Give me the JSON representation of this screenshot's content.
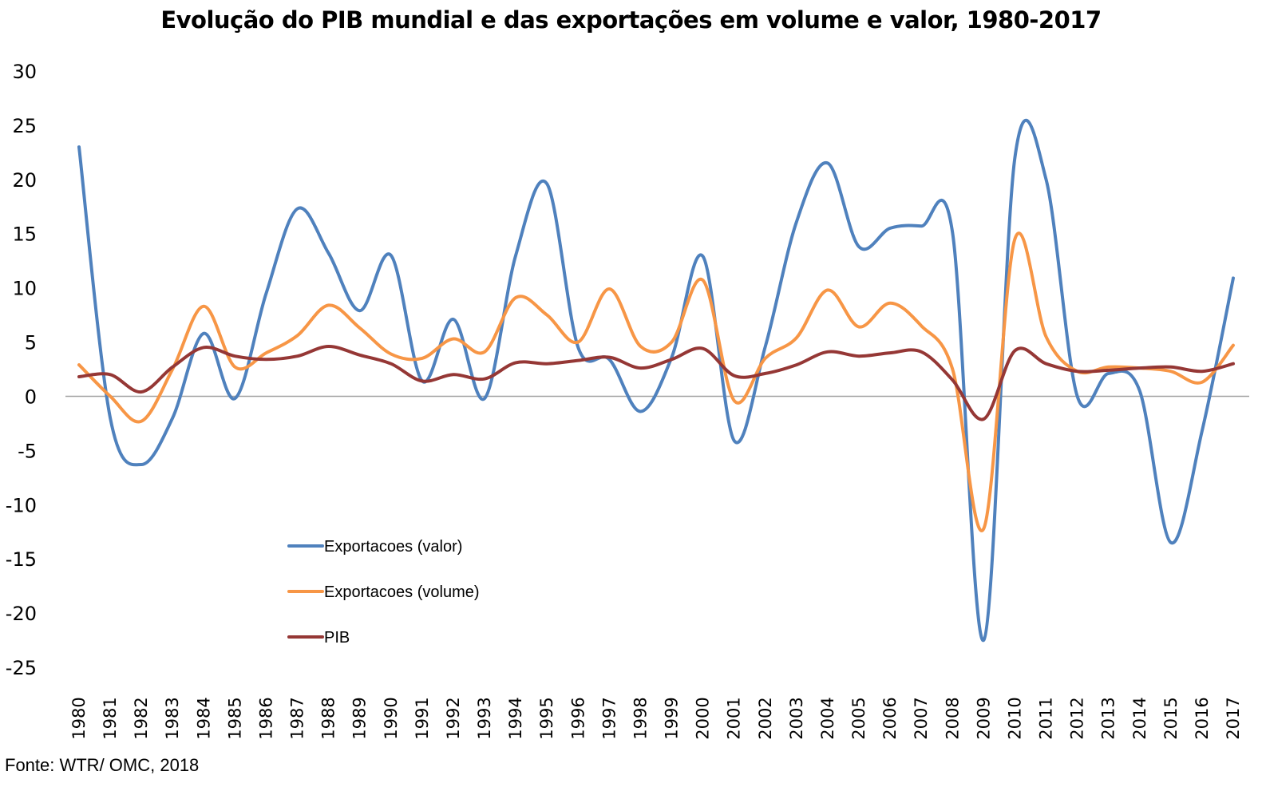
{
  "chart_data": {
    "type": "line",
    "title": "Evolução do PIB mundial e das exportações em volume e valor, 1980-2017",
    "xlabel": "",
    "ylabel": "",
    "ylim": [
      -25,
      30
    ],
    "yticks": [
      30,
      25,
      20,
      15,
      10,
      5,
      0,
      -5,
      -10,
      -15,
      -20,
      -25
    ],
    "grid": false,
    "smooth": true,
    "legend_position": "lower-left inside plot",
    "x": [
      1980,
      1981,
      1982,
      1983,
      1984,
      1985,
      1986,
      1987,
      1988,
      1989,
      1990,
      1991,
      1992,
      1993,
      1994,
      1995,
      1996,
      1997,
      1998,
      1999,
      2000,
      2001,
      2002,
      2003,
      2004,
      2005,
      2006,
      2007,
      2008,
      2009,
      2010,
      2011,
      2012,
      2013,
      2014,
      2015,
      2016,
      2017
    ],
    "series": [
      {
        "name": "Exportacoes (valor)",
        "color": "#4f81bd",
        "values": [
          23,
          -2,
          -6.3,
          -2,
          5.8,
          -0.2,
          9.5,
          17.3,
          13.2,
          7.9,
          13,
          1.4,
          7.1,
          -0.2,
          13,
          19.6,
          4.5,
          3.4,
          -1.4,
          3.6,
          12.9,
          -4.1,
          4.6,
          16.1,
          21.5,
          13.8,
          15.5,
          15.7,
          15.1,
          -22.5,
          22,
          20,
          0,
          2.1,
          0.5,
          -13.5,
          -3.2,
          10.9
        ]
      },
      {
        "name": "Exportacoes (volume)",
        "color": "#f79646",
        "values": [
          2.9,
          0,
          -2.3,
          2.5,
          8.3,
          2.7,
          4,
          5.6,
          8.4,
          6.3,
          3.9,
          3.5,
          5.3,
          4.1,
          9.1,
          7.5,
          5,
          9.9,
          4.6,
          5,
          10.7,
          -0.4,
          3.5,
          5.4,
          9.8,
          6.4,
          8.6,
          6.5,
          2.5,
          -12.2,
          14.5,
          5.5,
          2.3,
          2.7,
          2.6,
          2.3,
          1.3,
          4.7
        ]
      },
      {
        "name": "PIB",
        "color": "#953735",
        "values": [
          1.8,
          2,
          0.4,
          2.7,
          4.5,
          3.7,
          3.4,
          3.7,
          4.6,
          3.8,
          3,
          1.4,
          2,
          1.6,
          3.1,
          3,
          3.3,
          3.6,
          2.6,
          3.4,
          4.4,
          1.9,
          2.1,
          2.9,
          4.1,
          3.7,
          4,
          4.1,
          1.5,
          -2.1,
          4.2,
          3,
          2.3,
          2.4,
          2.6,
          2.7,
          2.3,
          3
        ]
      }
    ],
    "zero_line_color": "#a0a0a0",
    "source": "Fonte: WTR/ OMC, 2018"
  }
}
